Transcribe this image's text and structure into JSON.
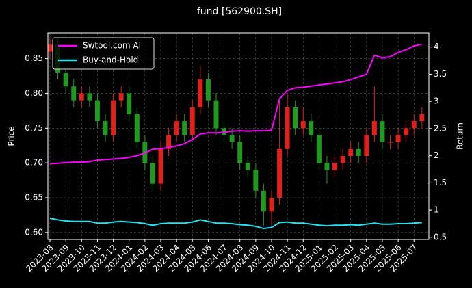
{
  "chart_data": {
    "type": "candlestick",
    "title": "fund [562900.SH]",
    "ylabel": "Price",
    "y2label": "Return",
    "up_color": "#e0201a",
    "down_color": "#1f9a1f",
    "grid": true,
    "legend": "upper left",
    "x": [
      0,
      0.5,
      1,
      1.5,
      2,
      2.5,
      3,
      3.5,
      4,
      4.5,
      5,
      5.5,
      6,
      6.5,
      7,
      7.5,
      8,
      8.5,
      9,
      9.5,
      10,
      10.5,
      11,
      11.5,
      12,
      12.5,
      13,
      13.5,
      14,
      14.5,
      15,
      15.5,
      16,
      16.5,
      17,
      17.5,
      18,
      18.5,
      19,
      19.5,
      20,
      20.5,
      21,
      21.5,
      22,
      22.5,
      23,
      23.5
    ],
    "open": [
      0.86,
      0.87,
      0.83,
      0.81,
      0.79,
      0.8,
      0.79,
      0.76,
      0.74,
      0.79,
      0.8,
      0.77,
      0.73,
      0.7,
      0.67,
      0.72,
      0.74,
      0.76,
      0.74,
      0.78,
      0.82,
      0.79,
      0.75,
      0.74,
      0.73,
      0.7,
      0.69,
      0.66,
      0.63,
      0.65,
      0.72,
      0.78,
      0.75,
      0.76,
      0.74,
      0.7,
      0.69,
      0.7,
      0.71,
      0.72,
      0.71,
      0.74,
      0.76,
      0.73,
      0.73,
      0.74,
      0.75,
      0.76
    ],
    "high": [
      0.88,
      0.88,
      0.84,
      0.82,
      0.81,
      0.81,
      0.8,
      0.77,
      0.8,
      0.81,
      0.81,
      0.78,
      0.74,
      0.71,
      0.73,
      0.75,
      0.77,
      0.77,
      0.79,
      0.84,
      0.83,
      0.8,
      0.76,
      0.75,
      0.74,
      0.71,
      0.7,
      0.67,
      0.66,
      0.79,
      0.8,
      0.79,
      0.78,
      0.77,
      0.75,
      0.71,
      0.71,
      0.72,
      0.73,
      0.73,
      0.75,
      0.81,
      0.77,
      0.74,
      0.75,
      0.76,
      0.77,
      0.78
    ],
    "low": [
      0.85,
      0.82,
      0.8,
      0.78,
      0.78,
      0.78,
      0.75,
      0.73,
      0.73,
      0.78,
      0.76,
      0.72,
      0.69,
      0.66,
      0.66,
      0.71,
      0.73,
      0.73,
      0.73,
      0.77,
      0.78,
      0.74,
      0.73,
      0.72,
      0.69,
      0.68,
      0.65,
      0.61,
      0.61,
      0.64,
      0.71,
      0.74,
      0.74,
      0.73,
      0.69,
      0.67,
      0.68,
      0.69,
      0.7,
      0.7,
      0.7,
      0.73,
      0.72,
      0.72,
      0.72,
      0.73,
      0.74,
      0.75
    ],
    "close": [
      0.87,
      0.83,
      0.81,
      0.79,
      0.8,
      0.79,
      0.76,
      0.74,
      0.79,
      0.8,
      0.77,
      0.73,
      0.7,
      0.67,
      0.72,
      0.74,
      0.76,
      0.74,
      0.78,
      0.82,
      0.79,
      0.75,
      0.74,
      0.73,
      0.7,
      0.69,
      0.66,
      0.63,
      0.65,
      0.72,
      0.78,
      0.75,
      0.76,
      0.74,
      0.7,
      0.69,
      0.7,
      0.71,
      0.72,
      0.71,
      0.74,
      0.76,
      0.73,
      0.73,
      0.74,
      0.75,
      0.76,
      0.77
    ],
    "series": [
      {
        "name": "Swtool.com AI",
        "color": "#ff00ff",
        "axis": "y2",
        "values": [
          1.85,
          1.86,
          1.87,
          1.88,
          1.88,
          1.89,
          1.92,
          1.93,
          1.94,
          1.95,
          1.97,
          2.0,
          2.05,
          2.12,
          2.13,
          2.15,
          2.18,
          2.22,
          2.3,
          2.4,
          2.42,
          2.42,
          2.43,
          2.45,
          2.46,
          2.45,
          2.46,
          2.46,
          2.47,
          3.05,
          3.2,
          3.25,
          3.26,
          3.28,
          3.3,
          3.32,
          3.34,
          3.36,
          3.4,
          3.45,
          3.5,
          3.85,
          3.8,
          3.82,
          3.9,
          3.95,
          4.02,
          4.05
        ]
      },
      {
        "name": "Buy-and-Hold",
        "color": "#22e5f0",
        "axis": "y2",
        "values": [
          0.85,
          0.82,
          0.8,
          0.79,
          0.79,
          0.79,
          0.76,
          0.76,
          0.78,
          0.79,
          0.78,
          0.77,
          0.75,
          0.72,
          0.75,
          0.76,
          0.76,
          0.76,
          0.78,
          0.82,
          0.79,
          0.76,
          0.76,
          0.75,
          0.73,
          0.72,
          0.7,
          0.66,
          0.68,
          0.77,
          0.78,
          0.76,
          0.76,
          0.74,
          0.72,
          0.71,
          0.72,
          0.72,
          0.73,
          0.72,
          0.74,
          0.76,
          0.74,
          0.74,
          0.75,
          0.75,
          0.76,
          0.77
        ]
      }
    ],
    "xlim": [
      -0.13,
      23.94
    ],
    "xticks": [
      {
        "value": 0,
        "label": "2023-08"
      },
      {
        "value": 1,
        "label": "2023-09"
      },
      {
        "value": 2,
        "label": "2023-10"
      },
      {
        "value": 3,
        "label": "2023-11"
      },
      {
        "value": 4,
        "label": "2023-12"
      },
      {
        "value": 5,
        "label": "2024-01"
      },
      {
        "value": 6,
        "label": "2024-02"
      },
      {
        "value": 7,
        "label": "2024-03"
      },
      {
        "value": 8,
        "label": "2024-04"
      },
      {
        "value": 9,
        "label": "2024-05"
      },
      {
        "value": 10,
        "label": "2024-06"
      },
      {
        "value": 11,
        "label": "2024-07"
      },
      {
        "value": 12,
        "label": "2024-08"
      },
      {
        "value": 13,
        "label": "2024-09"
      },
      {
        "value": 14,
        "label": "2024-10"
      },
      {
        "value": 15,
        "label": "2024-11"
      },
      {
        "value": 16,
        "label": "2024-12"
      },
      {
        "value": 17,
        "label": "2025-01"
      },
      {
        "value": 18,
        "label": "2025-02"
      },
      {
        "value": 19,
        "label": "2025-03"
      },
      {
        "value": 20,
        "label": "2025-04"
      },
      {
        "value": 21,
        "label": "2025-05"
      },
      {
        "value": 22,
        "label": "2025-06"
      },
      {
        "value": 23,
        "label": "2025-07"
      }
    ],
    "ylim": [
      0.59,
      0.887
    ],
    "yticks": [
      {
        "value": 0.6,
        "label": "0.60"
      },
      {
        "value": 0.65,
        "label": "0.65"
      },
      {
        "value": 0.7,
        "label": "0.70"
      },
      {
        "value": 0.75,
        "label": "0.75"
      },
      {
        "value": 0.8,
        "label": "0.80"
      },
      {
        "value": 0.85,
        "label": "0.85"
      }
    ],
    "y2lim": [
      0.46,
      4.26
    ],
    "y2ticks": [
      0.5,
      1.0,
      1.5,
      2.0,
      2.5,
      3.0,
      3.5,
      4.0
    ]
  }
}
